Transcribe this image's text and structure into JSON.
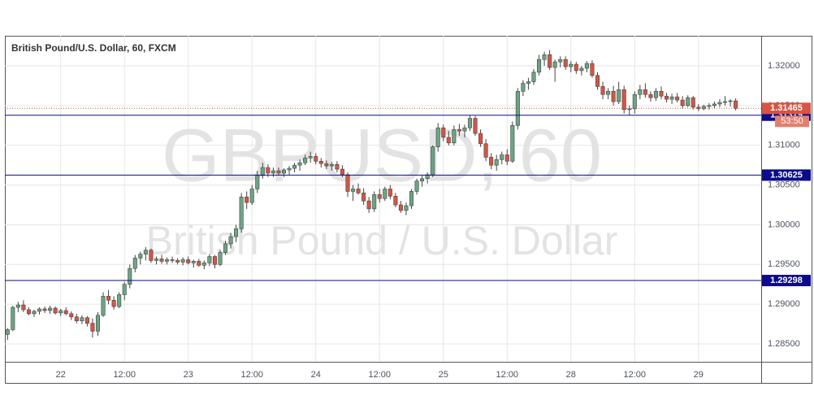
{
  "chart_data": {
    "type": "candlestick",
    "title": "British Pound/U.S. Dollar, 60, FXCM",
    "watermark": {
      "symbol": "GBPUSD, 60",
      "description": "British Pound / U.S. Dollar"
    },
    "up_color": "#6ba583",
    "down_color": "#d75442",
    "x": [
      -10,
      -9,
      -8,
      -7,
      -6,
      -5,
      -4,
      -3,
      -2,
      -1,
      0,
      1,
      2,
      3,
      4,
      5,
      6,
      7,
      8,
      9,
      10,
      11,
      12,
      13,
      14,
      15,
      16,
      17,
      18,
      19,
      20,
      21,
      22,
      23,
      24,
      25,
      26,
      27,
      28,
      29,
      30,
      31,
      32,
      33,
      34,
      35,
      36,
      37,
      38,
      39,
      40,
      41,
      42,
      43,
      44,
      45,
      46,
      47,
      48,
      49,
      50,
      51,
      52,
      53,
      54,
      55,
      56,
      57,
      58,
      59,
      60,
      61,
      62,
      63,
      64,
      65,
      66,
      67,
      68,
      69,
      70,
      71,
      72,
      73,
      74,
      75,
      76,
      77,
      78,
      79,
      80,
      81,
      82,
      83,
      84,
      85,
      86,
      87,
      88,
      89,
      90,
      91,
      92,
      93,
      94,
      95,
      96,
      97,
      98,
      99,
      100,
      101,
      102,
      103,
      104,
      105,
      106,
      107,
      108,
      109,
      110,
      111,
      112,
      113,
      114,
      115,
      116,
      117,
      118,
      119,
      120,
      121,
      122,
      123,
      124,
      125,
      126,
      127
    ],
    "open": [
      1.2862,
      1.2868,
      1.2896,
      1.2899,
      1.2893,
      1.2888,
      1.2891,
      1.2894,
      1.2892,
      1.2895,
      1.2889,
      1.2892,
      1.2888,
      1.2884,
      1.2879,
      1.2883,
      1.2876,
      1.2866,
      1.2886,
      1.291,
      1.2905,
      1.2897,
      1.2912,
      1.2925,
      1.2945,
      1.2958,
      1.2963,
      1.2968,
      1.2955,
      1.2957,
      1.2954,
      1.2956,
      1.2955,
      1.2953,
      1.2956,
      1.2952,
      1.2954,
      1.2949,
      1.2952,
      1.296,
      1.295,
      1.2965,
      1.2976,
      1.2985,
      1.2995,
      1.3035,
      1.3028,
      1.3045,
      1.3062,
      1.3072,
      1.3065,
      1.3068,
      1.3065,
      1.3069,
      1.3071,
      1.3075,
      1.3078,
      1.3084,
      1.3086,
      1.308,
      1.3077,
      1.3074,
      1.3076,
      1.307,
      1.3063,
      1.3042,
      1.3045,
      1.304,
      1.303,
      1.302,
      1.3038,
      1.3033,
      1.3045,
      1.3036,
      1.3025,
      1.3018,
      1.3024,
      1.3042,
      1.3055,
      1.3058,
      1.3063,
      1.3098,
      1.3122,
      1.311,
      1.3103,
      1.312,
      1.3118,
      1.3122,
      1.3134,
      1.3115,
      1.3102,
      1.3085,
      1.3075,
      1.3082,
      1.3088,
      1.308,
      1.3125,
      1.3168,
      1.3178,
      1.318,
      1.3192,
      1.3208,
      1.3214,
      1.3198,
      1.3205,
      1.3208,
      1.3199,
      1.3202,
      1.3194,
      1.3197,
      1.3203,
      1.3188,
      1.3174,
      1.3164,
      1.3168,
      1.3155,
      1.317,
      1.3145,
      1.3146,
      1.3164,
      1.317,
      1.3164,
      1.316,
      1.3168,
      1.3162,
      1.3158,
      1.3161,
      1.3157,
      1.315,
      1.316,
      1.3148,
      1.3146,
      1.3149,
      1.315,
      1.3152,
      1.3154,
      1.3155,
      1.3156
    ],
    "high": [
      1.287,
      1.2898,
      1.2903,
      1.2905,
      1.2896,
      1.2893,
      1.2896,
      1.2897,
      1.2898,
      1.2897,
      1.2894,
      1.2896,
      1.2891,
      1.2888,
      1.2886,
      1.2885,
      1.2882,
      1.289,
      1.2915,
      1.2918,
      1.291,
      1.2915,
      1.2928,
      1.295,
      1.2962,
      1.2966,
      1.2972,
      1.297,
      1.296,
      1.2962,
      1.2959,
      1.296,
      1.2958,
      1.2959,
      1.296,
      1.2956,
      1.2957,
      1.2955,
      1.2963,
      1.2962,
      1.2968,
      1.298,
      1.299,
      1.3,
      1.304,
      1.3042,
      1.305,
      1.3068,
      1.3078,
      1.3076,
      1.3072,
      1.3072,
      1.3071,
      1.3074,
      1.3078,
      1.3082,
      1.3088,
      1.3092,
      1.309,
      1.3084,
      1.3081,
      1.3079,
      1.308,
      1.3075,
      1.3066,
      1.305,
      1.3052,
      1.3046,
      1.3035,
      1.3042,
      1.3045,
      1.3048,
      1.305,
      1.304,
      1.303,
      1.3028,
      1.3045,
      1.3058,
      1.3062,
      1.3066,
      1.31,
      1.3128,
      1.3126,
      1.3118,
      1.3125,
      1.3127,
      1.3126,
      1.3138,
      1.3137,
      1.312,
      1.3108,
      1.309,
      1.3088,
      1.3092,
      1.3095,
      1.313,
      1.3172,
      1.3182,
      1.3185,
      1.3196,
      1.3214,
      1.3218,
      1.322,
      1.3208,
      1.3212,
      1.3212,
      1.3206,
      1.3205,
      1.32,
      1.3206,
      1.3207,
      1.3192,
      1.318,
      1.3172,
      1.3175,
      1.318,
      1.3175,
      1.315,
      1.3168,
      1.3176,
      1.3178,
      1.3168,
      1.3172,
      1.3174,
      1.3166,
      1.3165,
      1.3166,
      1.3162,
      1.3163,
      1.3162,
      1.3152,
      1.3151,
      1.3153,
      1.3155,
      1.3158,
      1.3162,
      1.3158,
      1.3159
    ],
    "low": [
      1.2855,
      1.2866,
      1.289,
      1.289,
      1.2886,
      1.2884,
      1.2887,
      1.2889,
      1.2888,
      1.2887,
      1.2885,
      1.2886,
      1.288,
      1.2876,
      1.2875,
      1.2872,
      1.2858,
      1.286,
      1.2884,
      1.29,
      1.2893,
      1.2895,
      1.2905,
      1.292,
      1.294,
      1.295,
      1.2955,
      1.2952,
      1.295,
      1.2951,
      1.295,
      1.2952,
      1.295,
      1.2949,
      1.295,
      1.2946,
      1.2947,
      1.2944,
      1.2948,
      1.2945,
      1.2948,
      1.2962,
      1.297,
      1.2978,
      1.299,
      1.302,
      1.3025,
      1.304,
      1.3058,
      1.306,
      1.306,
      1.3062,
      1.306,
      1.3063,
      1.3066,
      1.3068,
      1.3075,
      1.3078,
      1.3076,
      1.3072,
      1.307,
      1.3068,
      1.3066,
      1.306,
      1.3035,
      1.303,
      1.3038,
      1.3025,
      1.3015,
      1.3016,
      1.3028,
      1.303,
      1.3032,
      1.3022,
      1.3015,
      1.3012,
      1.302,
      1.3038,
      1.3048,
      1.3052,
      1.306,
      1.3092,
      1.3105,
      1.31,
      1.31,
      1.3112,
      1.311,
      1.3118,
      1.3112,
      1.3098,
      1.308,
      1.307,
      1.3068,
      1.3076,
      1.3075,
      1.3078,
      1.312,
      1.3162,
      1.317,
      1.3176,
      1.3188,
      1.32,
      1.3195,
      1.318,
      1.3198,
      1.3195,
      1.3192,
      1.319,
      1.3188,
      1.3192,
      1.3185,
      1.317,
      1.3158,
      1.3158,
      1.315,
      1.3152,
      1.314,
      1.3138,
      1.314,
      1.3158,
      1.316,
      1.3155,
      1.3156,
      1.3158,
      1.3154,
      1.3152,
      1.3154,
      1.3146,
      1.3148,
      1.3145,
      1.3143,
      1.3144,
      1.3145,
      1.3147,
      1.3148,
      1.315,
      1.3149,
      1.3144
    ],
    "close": [
      1.2868,
      1.2896,
      1.2899,
      1.2893,
      1.2888,
      1.2891,
      1.2894,
      1.2892,
      1.2895,
      1.2889,
      1.2892,
      1.2888,
      1.2884,
      1.2879,
      1.2883,
      1.2876,
      1.2866,
      1.2886,
      1.291,
      1.2905,
      1.2897,
      1.2912,
      1.2925,
      1.2945,
      1.2958,
      1.2963,
      1.2968,
      1.2955,
      1.2957,
      1.2954,
      1.2956,
      1.2955,
      1.2953,
      1.2956,
      1.2952,
      1.2954,
      1.2949,
      1.2952,
      1.296,
      1.295,
      1.2965,
      1.2976,
      1.2985,
      1.2995,
      1.3035,
      1.3028,
      1.3045,
      1.3062,
      1.3072,
      1.3065,
      1.3068,
      1.3065,
      1.3069,
      1.3071,
      1.3075,
      1.3078,
      1.3084,
      1.3086,
      1.308,
      1.3077,
      1.3074,
      1.3076,
      1.307,
      1.3063,
      1.3042,
      1.3045,
      1.304,
      1.303,
      1.302,
      1.3038,
      1.3033,
      1.3045,
      1.3036,
      1.3025,
      1.3018,
      1.3024,
      1.3042,
      1.3055,
      1.3058,
      1.3063,
      1.3098,
      1.3122,
      1.311,
      1.3103,
      1.312,
      1.3118,
      1.3122,
      1.3134,
      1.3115,
      1.3102,
      1.3085,
      1.3075,
      1.3082,
      1.3088,
      1.308,
      1.3125,
      1.3168,
      1.3178,
      1.318,
      1.3192,
      1.3208,
      1.3214,
      1.3198,
      1.3205,
      1.3208,
      1.3199,
      1.3202,
      1.3194,
      1.3197,
      1.3203,
      1.3188,
      1.3174,
      1.3164,
      1.3168,
      1.3155,
      1.317,
      1.3145,
      1.3146,
      1.3164,
      1.317,
      1.3164,
      1.316,
      1.3168,
      1.3162,
      1.3158,
      1.3161,
      1.3157,
      1.315,
      1.316,
      1.3148,
      1.3146,
      1.3149,
      1.315,
      1.3152,
      1.3154,
      1.3155,
      1.3156,
      1.31465
    ],
    "xlim": [
      -10.5,
      131.8
    ],
    "xticks": [
      {
        "value": 0,
        "label": "22"
      },
      {
        "value": 12,
        "label": "12:00"
      },
      {
        "value": 24,
        "label": "23"
      },
      {
        "value": 36,
        "label": "12:00"
      },
      {
        "value": 48,
        "label": "24"
      },
      {
        "value": 60,
        "label": "12:00"
      },
      {
        "value": 72,
        "label": "25"
      },
      {
        "value": 84,
        "label": "12:00"
      },
      {
        "value": 96,
        "label": "28"
      },
      {
        "value": 108,
        "label": "12:00"
      },
      {
        "value": 120,
        "label": "29"
      }
    ],
    "ylim": [
      1.28275,
      1.32379
    ],
    "yticks": [
      {
        "value": 1.285,
        "label": "1.28500"
      },
      {
        "value": 1.29,
        "label": "1.29000"
      },
      {
        "value": 1.295,
        "label": "1.29500"
      },
      {
        "value": 1.3,
        "label": "1.30000"
      },
      {
        "value": 1.305,
        "label": "1.30500"
      },
      {
        "value": 1.31,
        "label": "1.31000"
      },
      {
        "value": 1.315,
        "label": "1.31500"
      },
      {
        "value": 1.32,
        "label": "1.32000"
      }
    ],
    "grid": true,
    "hlines": [
      1.31379,
      1.30625,
      1.29298
    ],
    "hline_color": "#0b0b8c",
    "last_price": 1.31465,
    "countdown": "53:50"
  }
}
